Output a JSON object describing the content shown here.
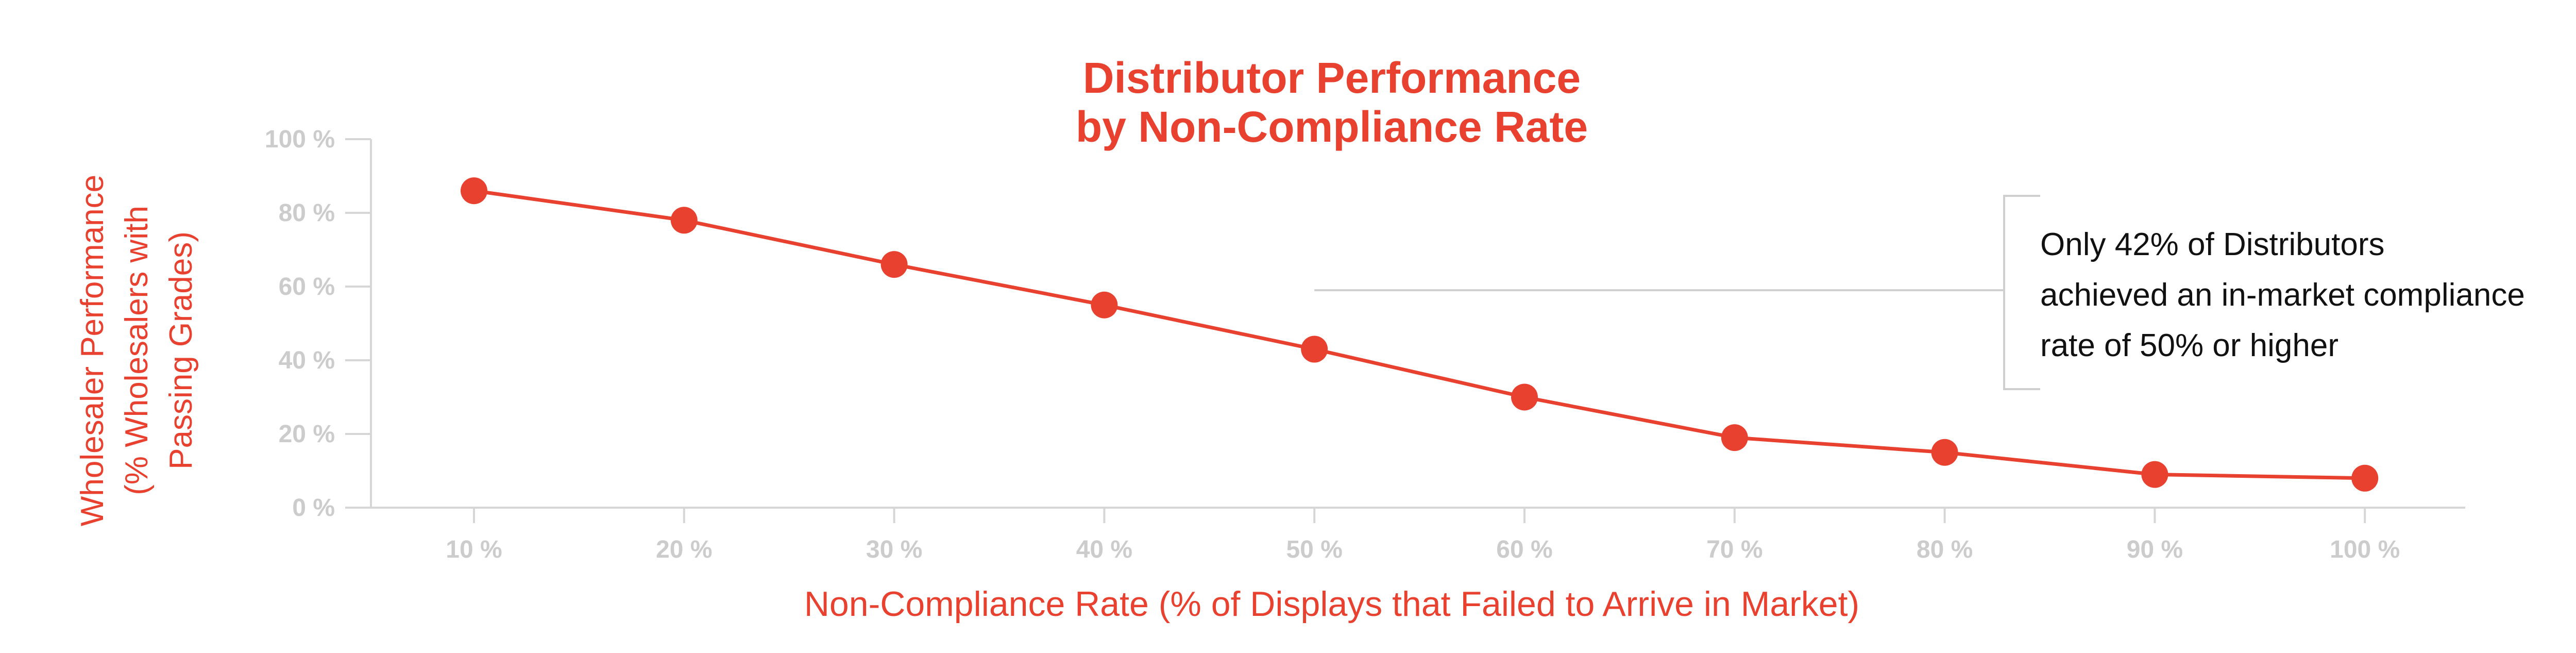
{
  "colors": {
    "accent": "#e8412f",
    "axis": "#d6d6d6",
    "tick_text": "#cccccc",
    "annotation_text": "#111111",
    "annotation_line": "#cfcfcf"
  },
  "chart_data": {
    "type": "line",
    "title": "Distributor Performance",
    "subtitle": "by Non-Compliance Rate",
    "ylabel_lines": [
      "Wholesaler Performance",
      "(% Wholesalers with",
      "Passing Grades)"
    ],
    "xlabel": "Non-Compliance Rate (% of Displays that Failed to Arrive in Market)",
    "categories": [
      "10 %",
      "20 %",
      "30 %",
      "40 %",
      "50 %",
      "60 %",
      "70 %",
      "80 %",
      "90 %",
      "100 %"
    ],
    "x": [
      10,
      20,
      30,
      40,
      50,
      60,
      70,
      80,
      90,
      100
    ],
    "values": [
      86,
      78,
      66,
      55,
      43,
      30,
      19,
      15,
      9,
      8
    ],
    "y_ticks": [
      0,
      20,
      40,
      60,
      80,
      100
    ],
    "y_tick_labels": [
      "0 %",
      "20 %",
      "40 %",
      "60 %",
      "80 %",
      "100 %"
    ],
    "ylim": [
      0,
      100
    ],
    "grid": false,
    "legend": "none",
    "annotation": {
      "lines": [
        "Only 42% of Distributors",
        "achieved an in-market compliance",
        "rate of 50% or higher"
      ],
      "points_to_x": 50,
      "points_to_y": 59
    }
  }
}
